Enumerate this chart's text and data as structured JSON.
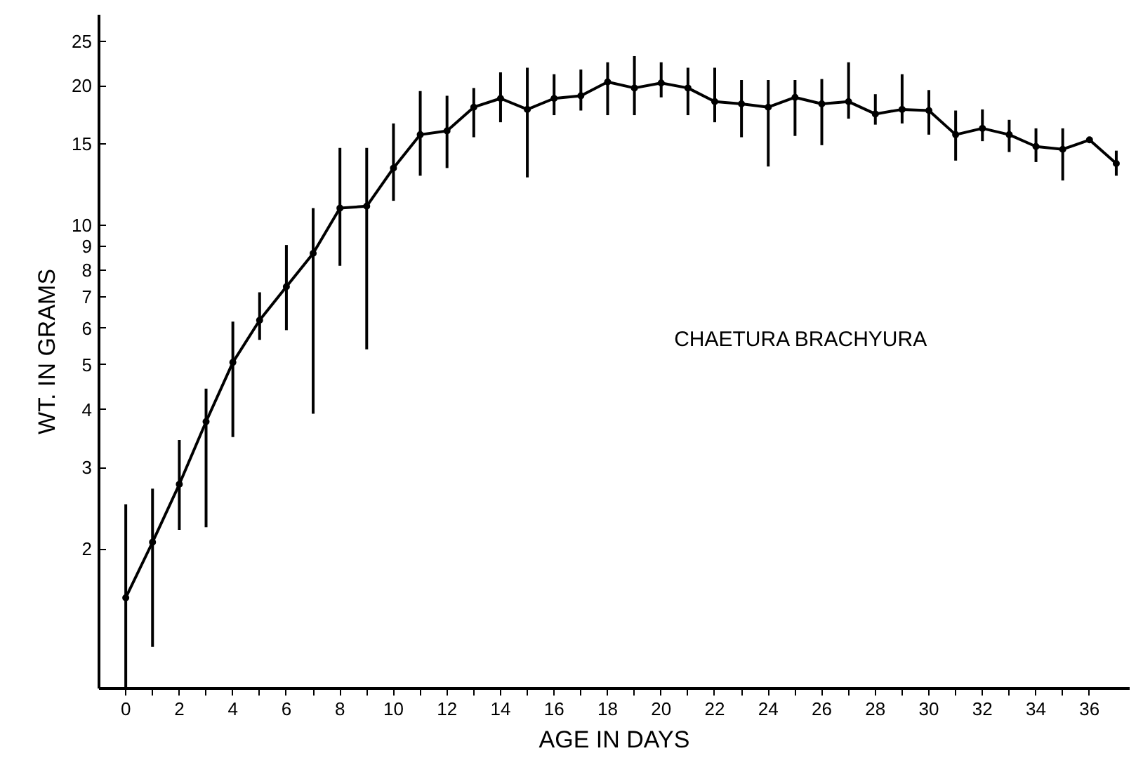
{
  "chart_data": {
    "type": "line",
    "xlabel": "AGE IN DAYS",
    "ylabel": "WT. IN GRAMS",
    "annotations": [
      "CHAETURA BRACHYURA"
    ],
    "x": [
      0,
      1,
      2,
      3,
      4,
      5,
      6,
      7,
      8,
      9,
      10,
      11,
      12,
      13,
      14,
      15,
      16,
      17,
      18,
      19,
      20,
      21,
      22,
      23,
      24,
      25,
      26,
      27,
      28,
      29,
      30,
      31,
      32,
      33,
      34,
      35,
      36,
      37
    ],
    "series": [
      {
        "color": "#000000",
        "values": [
          1.57,
          2.07,
          2.76,
          3.77,
          5.06,
          6.24,
          7.37,
          8.7,
          10.9,
          11.0,
          13.3,
          15.7,
          16.0,
          18.0,
          18.8,
          17.8,
          18.8,
          19.05,
          20.4,
          19.8,
          20.3,
          19.8,
          18.5,
          18.3,
          18.0,
          18.9,
          18.3,
          18.5,
          17.4,
          17.8,
          17.7,
          15.7,
          16.2,
          15.7,
          14.8,
          14.6,
          15.3,
          13.6
        ],
        "errors": [
          [
            1.0,
            2.5
          ],
          [
            1.23,
            2.7
          ],
          [
            2.2,
            3.44
          ],
          [
            2.23,
            4.44
          ],
          [
            3.49,
            6.2
          ],
          [
            5.66,
            7.17
          ],
          [
            5.94,
            9.07
          ],
          [
            3.92,
            10.9
          ],
          [
            8.18,
            14.7
          ],
          [
            5.4,
            14.7
          ],
          [
            11.3,
            16.6
          ],
          [
            12.8,
            19.5
          ],
          [
            13.3,
            19.05
          ],
          [
            15.5,
            19.8
          ],
          [
            16.7,
            21.4
          ],
          [
            12.7,
            21.9
          ],
          [
            17.3,
            21.2
          ],
          [
            17.7,
            21.7
          ],
          [
            17.3,
            22.5
          ],
          [
            17.3,
            23.2
          ],
          [
            18.9,
            22.5
          ],
          [
            17.3,
            21.9
          ],
          [
            16.7,
            21.9
          ],
          [
            15.5,
            20.6
          ],
          [
            13.4,
            20.6
          ],
          [
            15.6,
            20.6
          ],
          [
            14.9,
            20.7
          ],
          [
            17.0,
            22.5
          ],
          [
            16.5,
            19.2
          ],
          [
            16.6,
            21.2
          ],
          [
            15.7,
            19.6
          ],
          [
            13.8,
            17.7
          ],
          [
            15.2,
            17.8
          ],
          [
            14.4,
            16.9
          ],
          [
            13.7,
            16.2
          ],
          [
            12.5,
            16.2
          ],
          null,
          [
            12.8,
            14.5
          ]
        ]
      }
    ],
    "log": true,
    "marker": "circle",
    "line_style": "solid",
    "grid": false,
    "xlim": [
      -1,
      37.5
    ],
    "ylim": [
      1,
      28.5
    ],
    "xticks": [
      0,
      {
        "value": 1,
        "label": null
      },
      2,
      {
        "value": 3,
        "label": null
      },
      4,
      {
        "value": 5,
        "label": null
      },
      6,
      {
        "value": 7,
        "label": null
      },
      8,
      {
        "value": 9,
        "label": null
      },
      10,
      {
        "value": 11,
        "label": null
      },
      12,
      {
        "value": 13,
        "label": null
      },
      14,
      {
        "value": 15,
        "label": null
      },
      16,
      {
        "value": 17,
        "label": null
      },
      18,
      {
        "value": 19,
        "label": null
      },
      20,
      {
        "value": 21,
        "label": null
      },
      22,
      {
        "value": 23,
        "label": null
      },
      24,
      {
        "value": 25,
        "label": null
      },
      26,
      {
        "value": 27,
        "label": null
      },
      28,
      {
        "value": 29,
        "label": null
      },
      30,
      {
        "value": 31,
        "label": null
      },
      32,
      {
        "value": 33,
        "label": null
      },
      34,
      {
        "value": 35,
        "label": null
      },
      36
    ],
    "yticks": [
      2,
      3,
      4,
      5,
      6,
      7,
      8,
      9,
      10,
      15,
      20,
      25
    ]
  }
}
